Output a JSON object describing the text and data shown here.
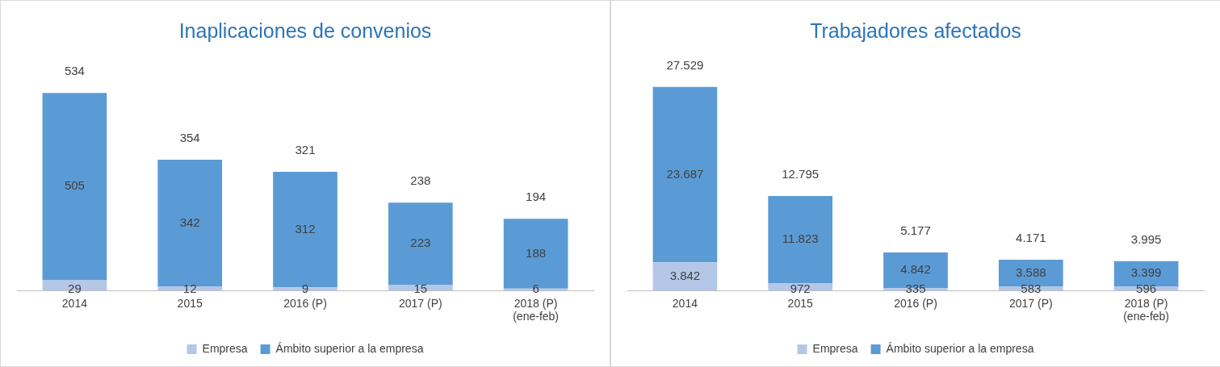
{
  "chart_data": [
    {
      "type": "bar",
      "title": "Inaplicaciones de convenios",
      "categories": [
        "2014",
        "2015",
        "2016 (P)",
        "2017 (P)",
        "2018 (P)\n(ene-feb)"
      ],
      "stacked": true,
      "legend": "bottom",
      "tick_labels": "x",
      "grid": false,
      "data_labels": true,
      "series": [
        {
          "name": "Empresa",
          "color": "#b4c7e7",
          "values": [
            29,
            12,
            9,
            15,
            6
          ]
        },
        {
          "name": "Ámbito superior a la empresa",
          "color": "#5b9bd5",
          "values": [
            505,
            342,
            312,
            223,
            188
          ]
        }
      ],
      "totals": [
        "534",
        "354",
        "321",
        "238",
        "194"
      ]
    },
    {
      "type": "bar",
      "title": "Trabajadores afectados",
      "categories": [
        "2014",
        "2015",
        "2016 (P)",
        "2017 (P)",
        "2018 (P)\n(ene-feb)"
      ],
      "stacked": true,
      "legend": "bottom",
      "tick_labels": "x",
      "grid": false,
      "series": [
        {
          "name": "Empresa",
          "color": "#b4c7e7",
          "values": [
            3842,
            972,
            335,
            583,
            596
          ],
          "value_labels": [
            "3.842",
            "972",
            "335",
            "583",
            "596"
          ]
        },
        {
          "name": "Ámbito superior a la empresa",
          "color": "#5b9bd5",
          "values": [
            23687,
            11823,
            4842,
            3588,
            3399
          ],
          "value_labels": [
            "23.687",
            "11.823",
            "4.842",
            "3.588",
            "3.399"
          ]
        }
      ],
      "totals": [
        "27.529",
        "12.795",
        "5.177",
        "4.171",
        "3.995"
      ]
    }
  ]
}
